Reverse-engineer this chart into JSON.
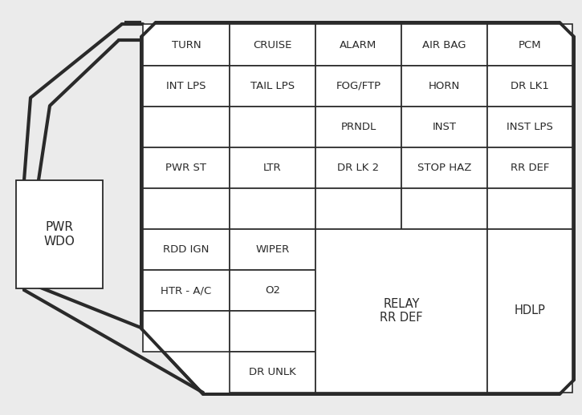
{
  "bg_color": "#ebebeb",
  "box_color": "#ffffff",
  "line_color": "#2a2a2a",
  "text_color": "#2a2a2a",
  "cells": [
    {
      "row": 0,
      "col": 0,
      "text": "TURN"
    },
    {
      "row": 0,
      "col": 1,
      "text": "CRUISE"
    },
    {
      "row": 0,
      "col": 2,
      "text": "ALARM"
    },
    {
      "row": 0,
      "col": 3,
      "text": "AIR BAG"
    },
    {
      "row": 0,
      "col": 4,
      "text": "PCM"
    },
    {
      "row": 1,
      "col": 0,
      "text": "INT LPS"
    },
    {
      "row": 1,
      "col": 1,
      "text": "TAIL LPS"
    },
    {
      "row": 1,
      "col": 2,
      "text": "FOG/FTP"
    },
    {
      "row": 1,
      "col": 3,
      "text": "HORN"
    },
    {
      "row": 1,
      "col": 4,
      "text": "DR LK1"
    },
    {
      "row": 2,
      "col": 0,
      "text": ""
    },
    {
      "row": 2,
      "col": 1,
      "text": ""
    },
    {
      "row": 2,
      "col": 2,
      "text": "PRNDL"
    },
    {
      "row": 2,
      "col": 3,
      "text": "INST"
    },
    {
      "row": 2,
      "col": 4,
      "text": "INST LPS"
    },
    {
      "row": 3,
      "col": 0,
      "text": "PWR ST"
    },
    {
      "row": 3,
      "col": 1,
      "text": "LTR"
    },
    {
      "row": 3,
      "col": 2,
      "text": "DR LK 2"
    },
    {
      "row": 3,
      "col": 3,
      "text": "STOP HAZ"
    },
    {
      "row": 3,
      "col": 4,
      "text": "RR DEF"
    },
    {
      "row": 4,
      "col": 0,
      "text": ""
    },
    {
      "row": 4,
      "col": 1,
      "text": ""
    },
    {
      "row": 4,
      "col": 2,
      "text": ""
    },
    {
      "row": 4,
      "col": 3,
      "text": ""
    },
    {
      "row": 4,
      "col": 4,
      "text": ""
    },
    {
      "row": 5,
      "col": 0,
      "text": "RDD IGN"
    },
    {
      "row": 5,
      "col": 1,
      "text": "WIPER"
    },
    {
      "row": 6,
      "col": 0,
      "text": "HTR - A/C"
    },
    {
      "row": 6,
      "col": 1,
      "text": "O2"
    },
    {
      "row": 7,
      "col": 0,
      "text": ""
    },
    {
      "row": 7,
      "col": 1,
      "text": ""
    },
    {
      "row": 8,
      "col": 0,
      "text": ""
    },
    {
      "row": 8,
      "col": 1,
      "text": "DR UNLK"
    }
  ],
  "pwr_wdo_text": "PWR\nWDO",
  "relay_text": "RELAY\nRR DEF",
  "hdlp_text": "HDLP"
}
